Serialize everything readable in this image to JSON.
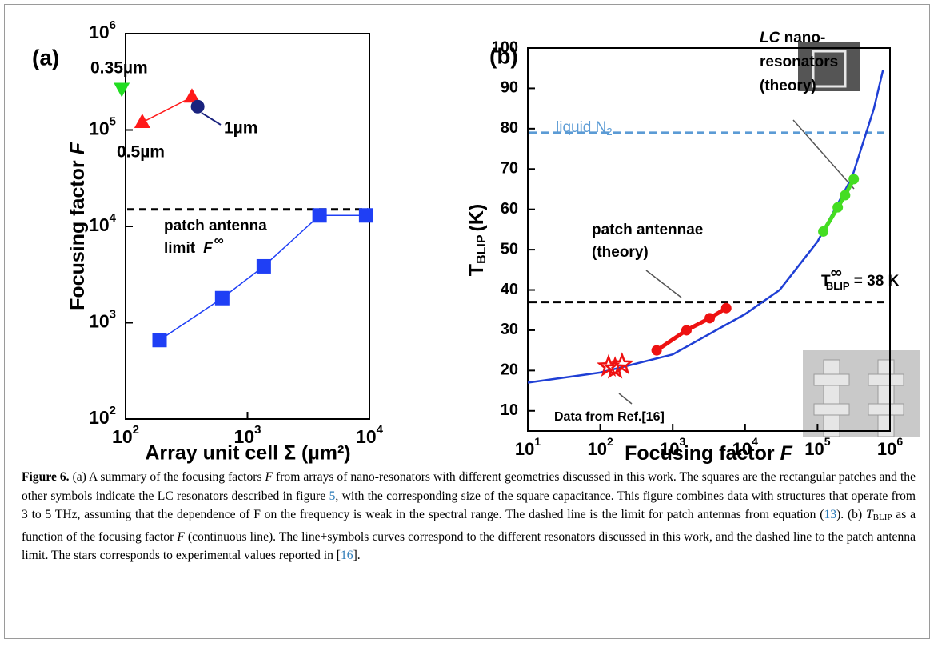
{
  "chart_data": [
    {
      "type": "line",
      "panel_label": "(a)",
      "xlabel": "Array unit cell Σ (µm²)",
      "ylabel": "Focusing  factor",
      "ylabel_var": "F",
      "xlog": true,
      "ylog": true,
      "xlim": [
        100,
        10000
      ],
      "ylim": [
        100,
        1000000
      ],
      "xticks": [
        {
          "value": 100,
          "label": "10",
          "exponent": "2"
        },
        {
          "value": 1000,
          "label": "10",
          "exponent": "3"
        },
        {
          "value": 10000,
          "label": "10",
          "exponent": "4"
        }
      ],
      "yticks": [
        {
          "value": 100,
          "label": "10",
          "exponent": "2"
        },
        {
          "value": 1000,
          "label": "10",
          "exponent": "3"
        },
        {
          "value": 10000,
          "label": "10",
          "exponent": "4"
        },
        {
          "value": 100000,
          "label": "10",
          "exponent": "5"
        },
        {
          "value": 1000000,
          "label": "10",
          "exponent": "6"
        }
      ],
      "series": [
        {
          "color": "#1f3ff5",
          "marker": "square",
          "line": true,
          "x": [
            190,
            620,
            1360,
            3900,
            9400
          ],
          "values": [
            660,
            1800,
            3850,
            13000,
            13000
          ]
        },
        {
          "color": "#ff1a1a",
          "marker": "triangle-up",
          "line": true,
          "x": [
            137,
            350
          ],
          "values": [
            120000,
            220000
          ]
        },
        {
          "color": "#22dd22",
          "marker": "triangle-down",
          "line": false,
          "x": [
            93
          ],
          "values": [
            270000
          ]
        },
        {
          "color": "#1a237e",
          "marker": "circle",
          "line": false,
          "x": [
            390
          ],
          "values": [
            175000
          ]
        }
      ],
      "hlines": [
        {
          "value": 15000,
          "color": "#000000"
        }
      ],
      "annotations": [
        "0.35µm",
        "0.5µm",
        "1µm",
        "patch antenna",
        "limit",
        "F",
        "∞"
      ]
    },
    {
      "type": "line",
      "panel_label": "(b)",
      "xlabel": "Focusing  factor",
      "xlabel_var": "F",
      "ylabel": "T",
      "ylabel_sub": "BLIP",
      "ylabel_suffix": "(K)",
      "xlog": true,
      "ylog": false,
      "xlim": [
        10,
        1000000
      ],
      "ylim": [
        5,
        100
      ],
      "xticks": [
        {
          "value": 10,
          "label": "10",
          "exponent": "1"
        },
        {
          "value": 100,
          "label": "10",
          "exponent": "2"
        },
        {
          "value": 1000,
          "label": "10",
          "exponent": "3"
        },
        {
          "value": 10000,
          "label": "10",
          "exponent": "4"
        },
        {
          "value": 100000,
          "label": "10",
          "exponent": "5"
        },
        {
          "value": 1000000,
          "label": "10",
          "exponent": "6"
        }
      ],
      "yticks": [
        10,
        20,
        30,
        40,
        50,
        60,
        70,
        80,
        90,
        100
      ],
      "series": [
        {
          "color": "#1f3fd5",
          "marker": "none",
          "line": true,
          "width": 2.5,
          "x": [
            10,
            100,
            1000,
            10000,
            30000,
            100000,
            300000,
            600000,
            800000
          ],
          "values": [
            17,
            19.5,
            24,
            34,
            40,
            52,
            68,
            85,
            94.5
          ]
        },
        {
          "color": "#ee1111",
          "marker": "circle",
          "line": true,
          "width": 5,
          "x": [
            600,
            1550,
            3250,
            5500
          ],
          "values": [
            25,
            30,
            33,
            35.5
          ]
        },
        {
          "color": "#44dd22",
          "marker": "circle",
          "line": true,
          "width": 5,
          "x": [
            120000,
            190000,
            240000,
            316000
          ],
          "values": [
            54.5,
            60.5,
            63.5,
            67.5
          ]
        },
        {
          "color": "#ee1111",
          "marker": "star",
          "line": false,
          "x": [
            130,
            160,
            200
          ],
          "values": [
            21,
            20.5,
            21.5
          ]
        }
      ],
      "hlines": [
        {
          "value": 37,
          "color": "#000000"
        },
        {
          "value": 79,
          "color": "#5b9bd5"
        }
      ],
      "annotations": [
        "liquid N",
        "2",
        "T",
        "∞",
        "BLIP",
        " = 38 K",
        "patch  antennae",
        "(theory)",
        "LC",
        " nano-",
        "resonators",
        "(theory)",
        "Data from Ref.[16]"
      ]
    }
  ],
  "caption": {
    "parts": [
      "Figure 6.",
      " (a) A summary of the focusing factors ",
      "F",
      " from arrays of nano-resonators with different geometries discussed in this work. The squares are the rectangular patches and the other symbols indicate the LC resonators described in figure ",
      "5",
      ", with the corresponding size of the square capacitance. This figure combines data with structures that operate from 3 to 5 THz, assuming that the dependence of F on the frequency is weak in the spectral range. The dashed line is the limit for patch antennas from equation (",
      "13",
      "). (b) ",
      "T",
      "BLIP",
      " as a function of the focusing factor ",
      "F",
      " (continuous line). The line+symbols curves correspond to the different resonators discussed in this work, and the dashed line to the patch antenna limit. The stars corresponds to experimental values reported in [",
      "16",
      "]."
    ]
  }
}
